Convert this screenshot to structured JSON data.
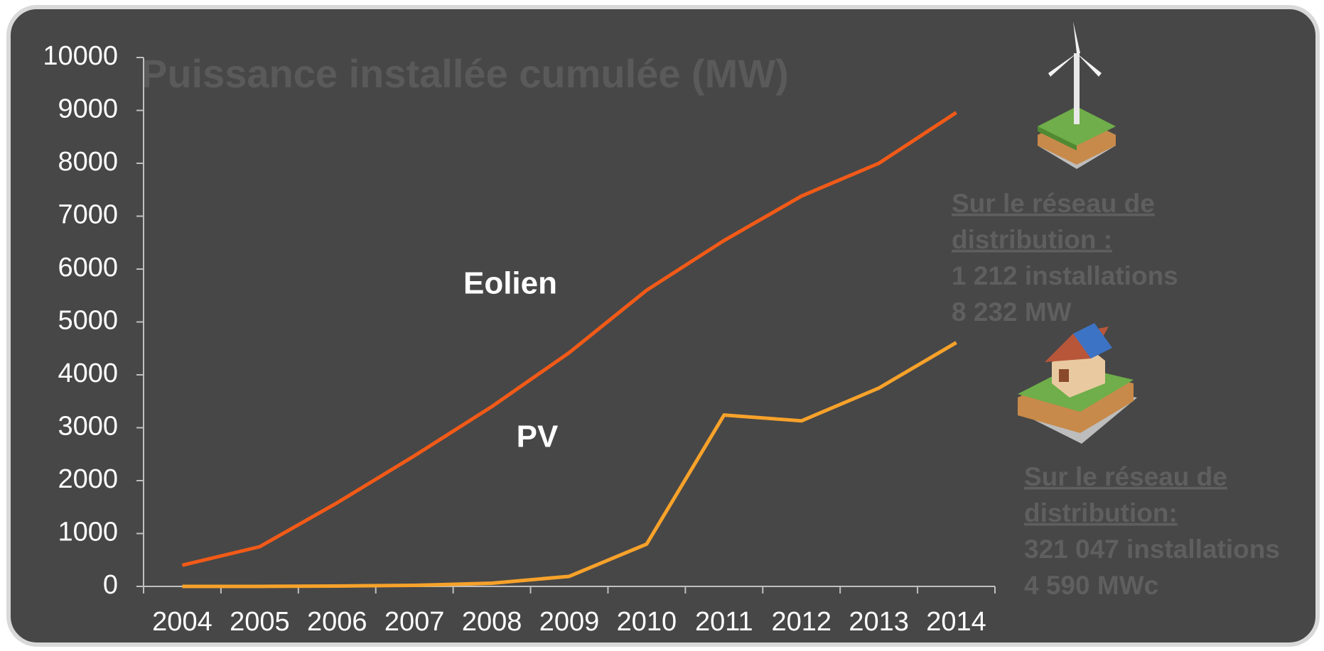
{
  "chart_data": {
    "type": "line",
    "title": "Puissance installée cumulée (MW)",
    "categories": [
      "2004",
      "2005",
      "2006",
      "2007",
      "2008",
      "2009",
      "2010",
      "2011",
      "2012",
      "2013",
      "2014"
    ],
    "series": [
      {
        "name": "Eolien",
        "color": "#f25a17",
        "values": [
          400,
          750,
          1580,
          2470,
          3400,
          4420,
          5600,
          6540,
          7380,
          8000,
          8960
        ]
      },
      {
        "name": "PV",
        "color": "#f7a22a",
        "values": [
          0,
          0,
          7,
          20,
          60,
          190,
          800,
          3240,
          3130,
          3750,
          4610
        ]
      }
    ],
    "ylim": [
      0,
      10000
    ],
    "yticks": [
      0,
      1000,
      2000,
      3000,
      4000,
      5000,
      6000,
      7000,
      8000,
      9000,
      10000
    ],
    "grid": false,
    "annotations": [
      {
        "lines": [
          "Sur le réseau de",
          "distribution :",
          "1 212 installations",
          "8 232 MW"
        ]
      },
      {
        "lines": [
          "Sur le réseau de",
          "distribution:",
          "321 047 installations",
          "4 590 MWc"
        ]
      }
    ]
  }
}
